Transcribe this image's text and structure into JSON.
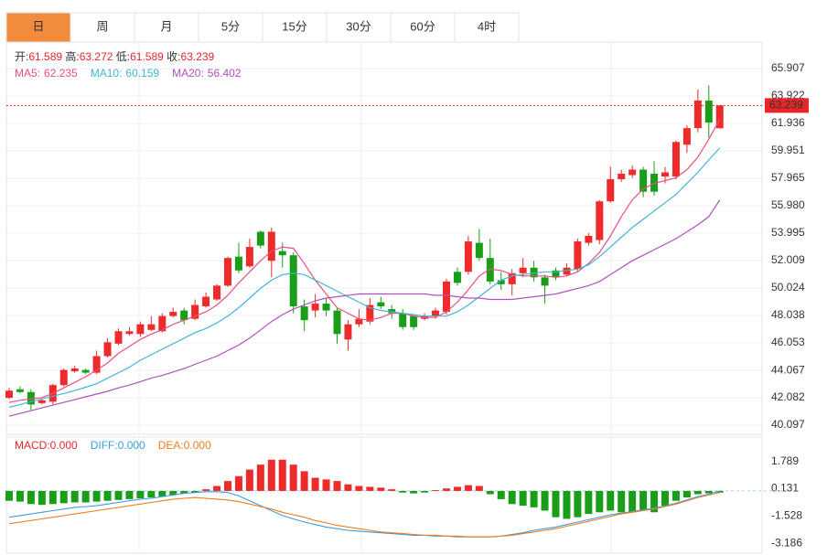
{
  "tabs": [
    "日",
    "周",
    "月",
    "5分",
    "15分",
    "30分",
    "60分",
    "4时"
  ],
  "active_tab": 0,
  "chart_data": [
    {
      "type": "candlestick",
      "ohlc_labels": {
        "open": "开:",
        "high": "高:",
        "low": "低:",
        "close": "收:"
      },
      "up_color": "#ee2a2a",
      "down_color": "#1a9e1a",
      "open": [
        42.08,
        42.7,
        42.5,
        41.7,
        41.8,
        43.0,
        44.0,
        44.1,
        43.9,
        45.1,
        46.0,
        46.7,
        46.7,
        47.0,
        46.9,
        48.0,
        48.4,
        47.8,
        48.7,
        49.2,
        50.2,
        52.3,
        51.6,
        54.1,
        52.0,
        52.7,
        52.4,
        48.7,
        48.4,
        48.9,
        48.4,
        46.3,
        47.4,
        47.6,
        49.0,
        48.5,
        48.2,
        48.0,
        47.8,
        48.0,
        48.3,
        51.2,
        51.2,
        53.3,
        52.2,
        50.6,
        50.3,
        51.1,
        51.5,
        50.8,
        51.3,
        51.0,
        51.4,
        53.3,
        53.5,
        56.3,
        57.9,
        58.2,
        58.6,
        58.3,
        58.1,
        58.1,
        60.4,
        61.6,
        63.6,
        61.589
      ],
      "high": [
        42.8,
        42.9,
        42.7,
        42.0,
        43.1,
        44.2,
        44.4,
        44.2,
        45.5,
        46.4,
        47.1,
        47.2,
        47.6,
        48.0,
        48.2,
        48.6,
        48.6,
        49.2,
        49.7,
        50.3,
        52.3,
        53.3,
        53.6,
        54.2,
        54.4,
        53.3,
        52.6,
        49.2,
        49.6,
        49.3,
        48.6,
        47.7,
        48.5,
        49.3,
        49.4,
        48.8,
        48.5,
        48.1,
        48.2,
        48.6,
        50.7,
        51.5,
        53.8,
        54.3,
        53.6,
        51.2,
        51.4,
        52.2,
        52.0,
        51.0,
        51.5,
        51.8,
        53.6,
        54.0,
        56.4,
        58.8,
        58.6,
        58.9,
        58.8,
        59.2,
        58.8,
        60.7,
        61.8,
        64.4,
        64.7,
        63.272
      ],
      "low": [
        42.0,
        42.4,
        41.2,
        41.6,
        41.6,
        42.9,
        43.9,
        43.8,
        43.8,
        45.0,
        45.9,
        46.6,
        46.5,
        46.9,
        46.8,
        47.9,
        47.4,
        47.7,
        48.6,
        49.1,
        50.1,
        51.1,
        51.5,
        52.9,
        50.8,
        51.5,
        48.2,
        46.9,
        47.9,
        48.0,
        46.0,
        45.5,
        47.2,
        47.4,
        48.5,
        47.8,
        47.0,
        47.0,
        47.7,
        47.8,
        48.1,
        50.2,
        51.0,
        52.0,
        50.3,
        49.9,
        49.5,
        50.8,
        50.5,
        48.9,
        50.6,
        50.9,
        51.2,
        53.1,
        53.2,
        56.2,
        57.7,
        58.0,
        56.6,
        56.7,
        57.6,
        57.9,
        59.8,
        61.3,
        60.9,
        61.589
      ],
      "close": [
        42.6,
        42.5,
        41.6,
        41.9,
        43.0,
        44.1,
        44.2,
        43.9,
        45.1,
        46.1,
        46.9,
        46.9,
        47.4,
        47.4,
        48.0,
        48.3,
        47.7,
        48.8,
        49.4,
        50.2,
        52.2,
        51.3,
        53.0,
        53.1,
        54.1,
        52.4,
        48.7,
        47.7,
        48.9,
        48.4,
        46.7,
        47.4,
        47.8,
        48.8,
        48.7,
        48.2,
        47.2,
        47.2,
        48.0,
        48.4,
        50.5,
        50.4,
        53.4,
        52.2,
        50.5,
        50.3,
        51.1,
        51.5,
        50.8,
        50.2,
        50.8,
        51.5,
        53.4,
        53.8,
        56.3,
        57.9,
        58.3,
        58.6,
        57.0,
        57.0,
        58.4,
        60.6,
        61.6,
        63.6,
        62.0,
        63.239
      ],
      "series": [
        {
          "label": "MA5:",
          "color": "#e8507e",
          "values": [
            41.75,
            41.9,
            42.0,
            42.1,
            42.4,
            42.8,
            43.2,
            43.6,
            44.1,
            44.6,
            45.3,
            45.8,
            46.3,
            46.7,
            47.0,
            47.4,
            47.7,
            48.0,
            48.3,
            48.8,
            49.5,
            50.4,
            51.2,
            52.0,
            52.7,
            53.0,
            52.9,
            51.8,
            50.6,
            49.6,
            48.6,
            48.2,
            47.8,
            47.7,
            47.9,
            48.2,
            48.2,
            48.0,
            47.9,
            47.9,
            48.3,
            49.0,
            49.9,
            50.9,
            51.4,
            51.3,
            51.0,
            50.9,
            50.9,
            50.9,
            50.8,
            50.9,
            51.2,
            51.8,
            52.6,
            53.8,
            55.2,
            56.4,
            57.2,
            57.6,
            57.8,
            58.0,
            58.6,
            59.5,
            60.8,
            62.235
          ]
        },
        {
          "label": "MA10:",
          "color": "#3fb6d6",
          "values": [
            41.4,
            41.6,
            41.8,
            42.0,
            42.2,
            42.4,
            42.6,
            42.85,
            43.1,
            43.5,
            43.9,
            44.3,
            44.8,
            45.2,
            45.6,
            46.0,
            46.4,
            46.8,
            47.1,
            47.5,
            48.0,
            48.6,
            49.3,
            50.0,
            50.6,
            51.0,
            51.1,
            51.0,
            50.6,
            50.2,
            49.8,
            49.4,
            49.0,
            48.6,
            48.4,
            48.3,
            48.2,
            48.1,
            48.0,
            48.0,
            48.0,
            48.3,
            48.8,
            49.4,
            50.0,
            50.6,
            50.9,
            51.0,
            51.1,
            51.2,
            51.2,
            51.3,
            51.4,
            51.7,
            52.3,
            53.0,
            53.7,
            54.4,
            55.0,
            55.6,
            56.2,
            56.8,
            57.6,
            58.4,
            59.3,
            60.159
          ]
        },
        {
          "label": "MA20:",
          "color": "#b24fbf",
          "values": [
            40.75,
            40.95,
            41.15,
            41.35,
            41.55,
            41.75,
            41.95,
            42.15,
            42.35,
            42.55,
            42.8,
            43.0,
            43.25,
            43.5,
            43.7,
            43.95,
            44.2,
            44.5,
            44.8,
            45.1,
            45.5,
            45.9,
            46.4,
            47.0,
            47.6,
            48.1,
            48.5,
            48.8,
            49.1,
            49.3,
            49.4,
            49.5,
            49.6,
            49.6,
            49.6,
            49.6,
            49.6,
            49.6,
            49.6,
            49.5,
            49.5,
            49.4,
            49.3,
            49.3,
            49.2,
            49.2,
            49.2,
            49.3,
            49.4,
            49.5,
            49.6,
            49.8,
            50.0,
            50.2,
            50.5,
            51.0,
            51.5,
            52.0,
            52.4,
            52.8,
            53.2,
            53.6,
            54.1,
            54.6,
            55.2,
            56.402
          ]
        }
      ],
      "ylim": [
        39.44,
        67.83
      ],
      "yticks": [
        65.907,
        63.922,
        61.936,
        59.951,
        57.965,
        {
          "value": 55.98,
          "label": "55.980"
        },
        53.995,
        52.009,
        50.024,
        48.038,
        46.053,
        44.067,
        42.082,
        40.097
      ],
      "grid": true
    },
    {
      "type": "macd",
      "legend": [
        {
          "label": "MACD:",
          "value": "0.000",
          "color": "#e8262a"
        },
        {
          "label": "DIFF:",
          "value": "0.000",
          "color": "#3a9ee0"
        },
        {
          "label": "DEA:",
          "value": "0.000",
          "color": "#f07d1a"
        }
      ],
      "up_color": "#ee2a2a",
      "down_color": "#1a9e1a",
      "histogram": [
        -0.6,
        -0.65,
        -0.8,
        -0.85,
        -0.8,
        -0.75,
        -0.7,
        -0.7,
        -0.65,
        -0.6,
        -0.55,
        -0.5,
        -0.45,
        -0.4,
        -0.35,
        -0.25,
        -0.15,
        -0.1,
        0.1,
        0.3,
        0.6,
        0.9,
        1.3,
        1.6,
        1.9,
        1.9,
        1.6,
        1.2,
        0.8,
        0.7,
        0.6,
        0.4,
        0.3,
        0.25,
        0.2,
        0.1,
        -0.1,
        -0.15,
        -0.1,
        0.05,
        0.15,
        0.25,
        0.35,
        0.3,
        -0.2,
        -0.5,
        -0.8,
        -0.9,
        -1.0,
        -1.2,
        -1.6,
        -1.7,
        -1.6,
        -1.4,
        -1.3,
        -1.2,
        -1.3,
        -1.3,
        -1.2,
        -1.3,
        -0.9,
        -0.6,
        -0.4,
        -0.2,
        -0.15,
        -0.1
      ],
      "series": [
        {
          "color": "#3a9ee0",
          "values": [
            -1.6,
            -1.5,
            -1.4,
            -1.3,
            -1.2,
            -1.1,
            -1.0,
            -0.95,
            -0.9,
            -0.8,
            -0.7,
            -0.6,
            -0.5,
            -0.45,
            -0.35,
            -0.25,
            -0.15,
            -0.1,
            -0.05,
            -0.05,
            -0.1,
            -0.3,
            -0.6,
            -0.9,
            -1.2,
            -1.5,
            -1.7,
            -1.9,
            -2.05,
            -2.2,
            -2.3,
            -2.4,
            -2.45,
            -2.5,
            -2.55,
            -2.6,
            -2.65,
            -2.7,
            -2.7,
            -2.75,
            -2.75,
            -2.8,
            -2.8,
            -2.8,
            -2.8,
            -2.75,
            -2.65,
            -2.55,
            -2.4,
            -2.3,
            -2.2,
            -2.05,
            -1.9,
            -1.75,
            -1.6,
            -1.45,
            -1.35,
            -1.25,
            -1.15,
            -1.05,
            -0.9,
            -0.75,
            -0.55,
            -0.35,
            -0.2,
            0
          ]
        },
        {
          "color": "#f07d1a",
          "values": [
            -2.0,
            -1.9,
            -1.8,
            -1.7,
            -1.6,
            -1.5,
            -1.4,
            -1.3,
            -1.2,
            -1.1,
            -1.0,
            -0.9,
            -0.8,
            -0.7,
            -0.6,
            -0.5,
            -0.45,
            -0.4,
            -0.45,
            -0.5,
            -0.55,
            -0.65,
            -0.8,
            -0.95,
            -1.1,
            -1.3,
            -1.45,
            -1.6,
            -1.8,
            -1.95,
            -2.1,
            -2.2,
            -2.3,
            -2.4,
            -2.5,
            -2.55,
            -2.6,
            -2.65,
            -2.7,
            -2.7,
            -2.75,
            -2.75,
            -2.8,
            -2.8,
            -2.8,
            -2.75,
            -2.7,
            -2.6,
            -2.5,
            -2.4,
            -2.3,
            -2.15,
            -2.0,
            -1.85,
            -1.7,
            -1.55,
            -1.4,
            -1.3,
            -1.2,
            -1.1,
            -0.95,
            -0.8,
            -0.6,
            -0.4,
            -0.25,
            -0.1
          ]
        }
      ],
      "ylim": [
        -3.79,
        3.28
      ],
      "yticks": [
        1.789,
        0.131,
        -1.528,
        -3.186
      ]
    }
  ]
}
